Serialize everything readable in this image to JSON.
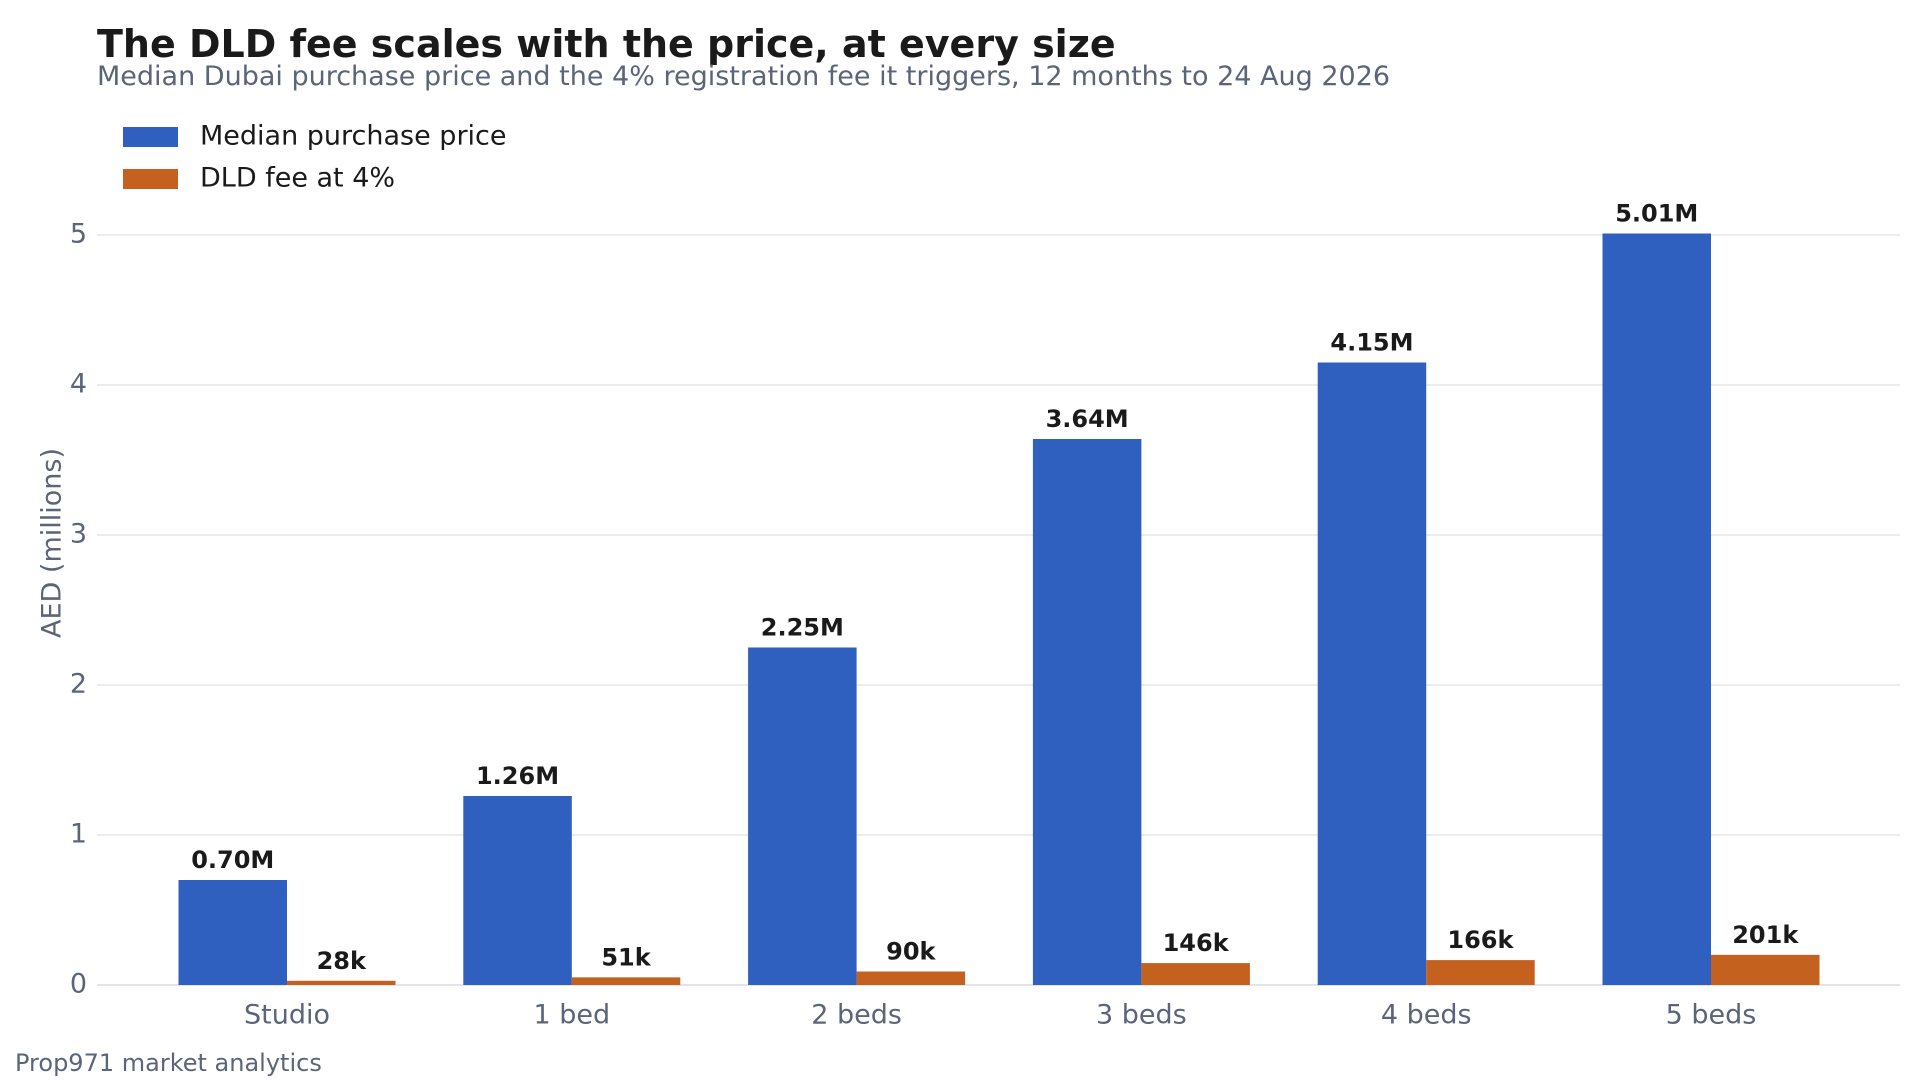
{
  "chart_data": {
    "type": "bar",
    "title": "The DLD fee scales with the price, at every size",
    "subtitle": "Median Dubai purchase price and the 4% registration fee it triggers, 12 months to 24 Aug 2026",
    "xlabel": "",
    "ylabel": "AED (millions)",
    "ylim": [
      0,
      5.4
    ],
    "yticks": [
      0,
      1,
      2,
      3,
      4,
      5
    ],
    "categories": [
      "Studio",
      "1 bed",
      "2 beds",
      "3 beds",
      "4 beds",
      "5 beds"
    ],
    "series": [
      {
        "name": "Median purchase price",
        "color": "#2f5fbf",
        "values": [
          0.7,
          1.26,
          2.25,
          3.64,
          4.15,
          5.01
        ],
        "labels": [
          "0.70M",
          "1.26M",
          "2.25M",
          "3.64M",
          "4.15M",
          "5.01M"
        ]
      },
      {
        "name": "DLD fee at 4%",
        "color": "#c4611f",
        "values": [
          0.028,
          0.051,
          0.09,
          0.146,
          0.166,
          0.201
        ],
        "labels": [
          "28k",
          "51k",
          "90k",
          "146k",
          "166k",
          "201k"
        ]
      }
    ],
    "grid": true,
    "legend": "top-left"
  },
  "source": "Prop971 market analytics"
}
